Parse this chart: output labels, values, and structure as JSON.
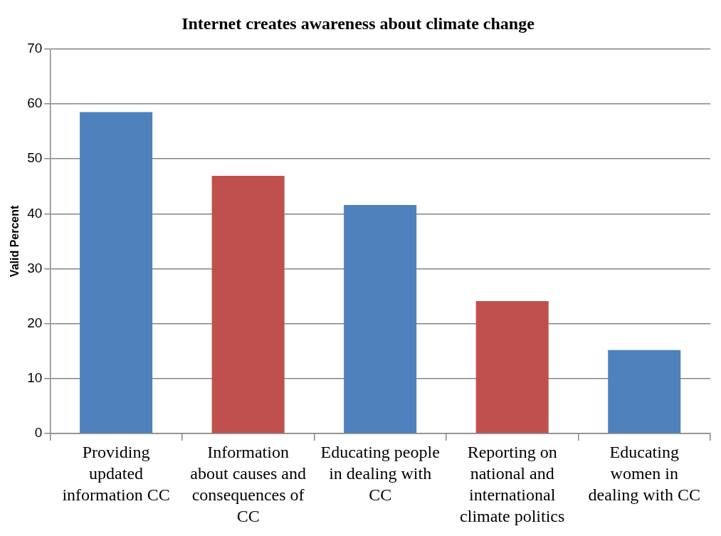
{
  "chart_data": {
    "type": "bar",
    "title": "Internet creates awareness about climate change",
    "ylabel": "Valid Percent",
    "categories": [
      "Providing updated information CC",
      "Information about causes and consequences of CC",
      "Educating people in dealing with CC",
      "Reporting on national and international climate politics",
      "Educating women in dealing with CC"
    ],
    "values": [
      58.5,
      46.9,
      41.6,
      24.1,
      15.2
    ],
    "colors": [
      "#4f81bd",
      "#c0504d",
      "#4f81bd",
      "#c0504d",
      "#4f81bd"
    ],
    "ylim": [
      0,
      70
    ],
    "yticks": [
      0,
      10,
      20,
      30,
      40,
      50,
      60,
      70
    ],
    "grid": "y",
    "legend": false
  }
}
